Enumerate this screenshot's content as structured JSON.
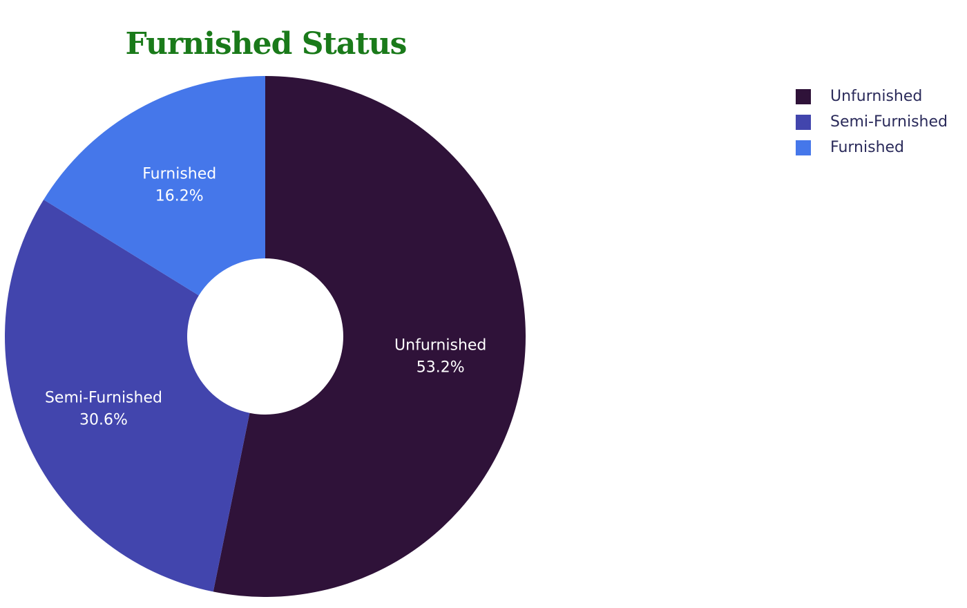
{
  "chart_data": {
    "type": "pie",
    "hole": true,
    "title": "Furnished Status",
    "legend_position": "top-right",
    "slices": [
      {
        "label": "Unfurnished",
        "value": 53.2,
        "display": "53.2%",
        "color": "#2f1239"
      },
      {
        "label": "Semi-Furnished",
        "value": 30.6,
        "display": "30.6%",
        "color": "#4245ad"
      },
      {
        "label": "Furnished",
        "value": 16.2,
        "display": "16.2%",
        "color": "#4577ea"
      }
    ],
    "colors": {
      "title": "#1a7a1a",
      "legend_text": "#2a2a5a",
      "slice_text": "#ffffff",
      "background": "#ffffff"
    }
  }
}
